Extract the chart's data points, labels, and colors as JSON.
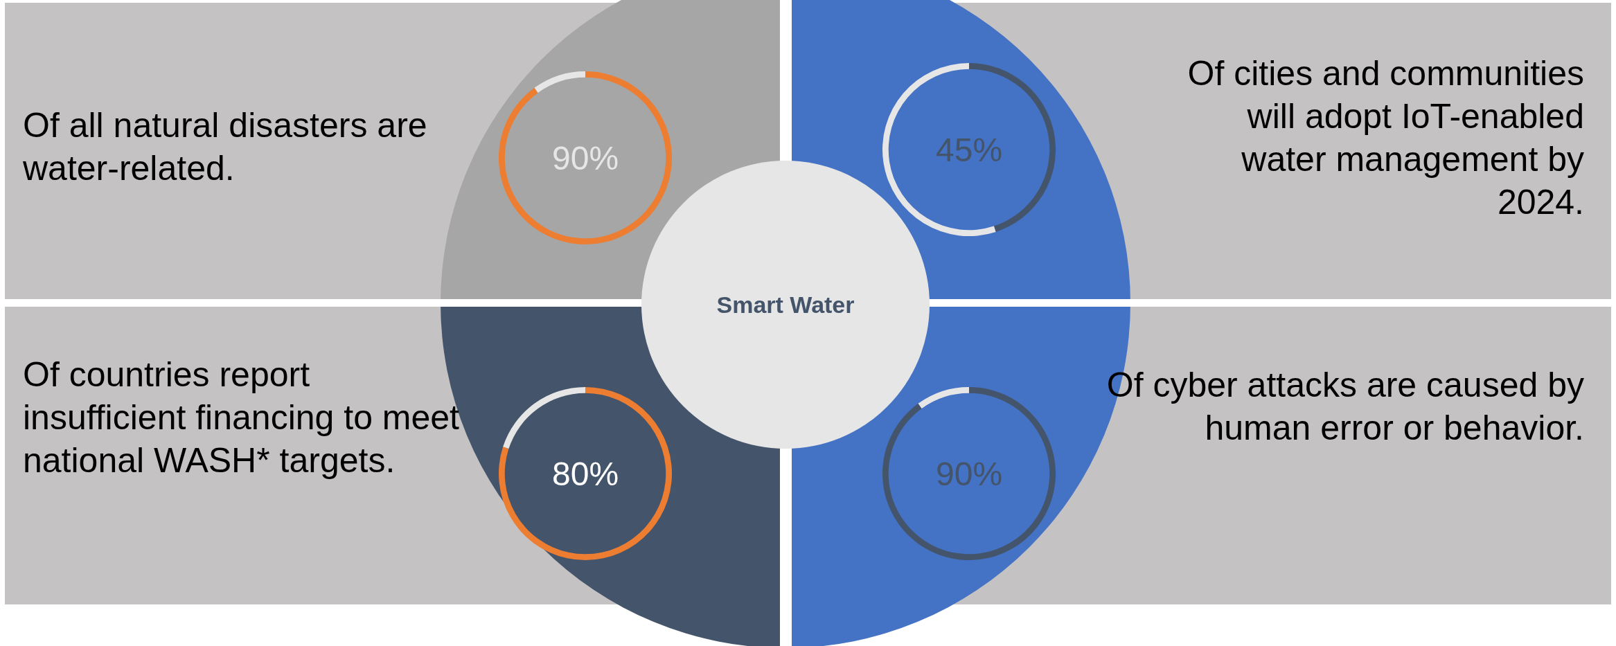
{
  "chart_data": [
    {
      "type": "donut",
      "title": "Of all natural disasters are water-related.",
      "categories": [
        null,
        null
      ],
      "values": [
        90,
        10
      ],
      "colors": [
        "#ed7d31",
        "#e7e6e6"
      ],
      "value_labels": [
        "90%",
        null
      ]
    },
    {
      "type": "donut",
      "title": "Of cities and communities will adopt IoT-enabled water management by 2024.",
      "categories": [
        null,
        null
      ],
      "values": [
        45,
        55
      ],
      "colors": [
        "#44546a",
        "#e7e6e6"
      ],
      "value_labels": [
        "45%",
        null
      ]
    },
    {
      "type": "other",
      "title": "Smart Water"
    },
    {
      "type": "donut",
      "title": "Of countries report insufficient financing to meet national WASH* targets.",
      "categories": [
        null,
        null
      ],
      "values": [
        80,
        20
      ],
      "colors": [
        "#ed7d31",
        "#e7e6e6"
      ],
      "value_labels": [
        "80%",
        null
      ]
    },
    {
      "type": "donut",
      "title": "Of cyber attacks are caused by human error or behavior.",
      "categories": [
        null,
        null
      ],
      "values": [
        90,
        10
      ],
      "colors": [
        "#44546a",
        "#e7e6e6"
      ],
      "value_labels": [
        "90%",
        null
      ]
    }
  ]
}
